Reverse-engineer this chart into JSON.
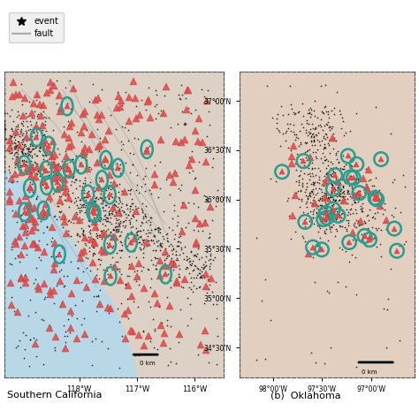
{
  "title_left": "Southern California",
  "title_right": "(b)  Oklahoma",
  "legend_event": "event",
  "legend_fault": "fault",
  "panel_a": {
    "xlim": [
      -119.3,
      -115.5
    ],
    "ylim": [
      32.2,
      35.6
    ],
    "xticks": [
      -118,
      -117,
      -116
    ],
    "xtick_labels": [
      "118°W",
      "117°W",
      "116°W"
    ],
    "bg_land_color": "#ddd0c4",
    "bg_ocean_color": "#b8d8e8"
  },
  "panel_b": {
    "xlim": [
      -98.35,
      -96.55
    ],
    "ylim": [
      34.2,
      37.3
    ],
    "yticks": [
      34.5,
      35.0,
      35.5,
      36.0,
      36.5,
      37.0
    ],
    "ytick_labels": [
      "34°30'N",
      "35°00'N",
      "35°30'N",
      "36°00'N",
      "36°30'N",
      "37°00'N"
    ],
    "xticks": [
      -98.0,
      -97.5,
      -97.0
    ],
    "xtick_labels": [
      "98°00'W",
      "97°30'W",
      "97°00'W"
    ],
    "bg_color": "#e2cfc0"
  },
  "circle_color": "#2a9d8f",
  "triangle_color": "#e05050",
  "fault_color": "#aaaaaa",
  "event_color": "#111111"
}
